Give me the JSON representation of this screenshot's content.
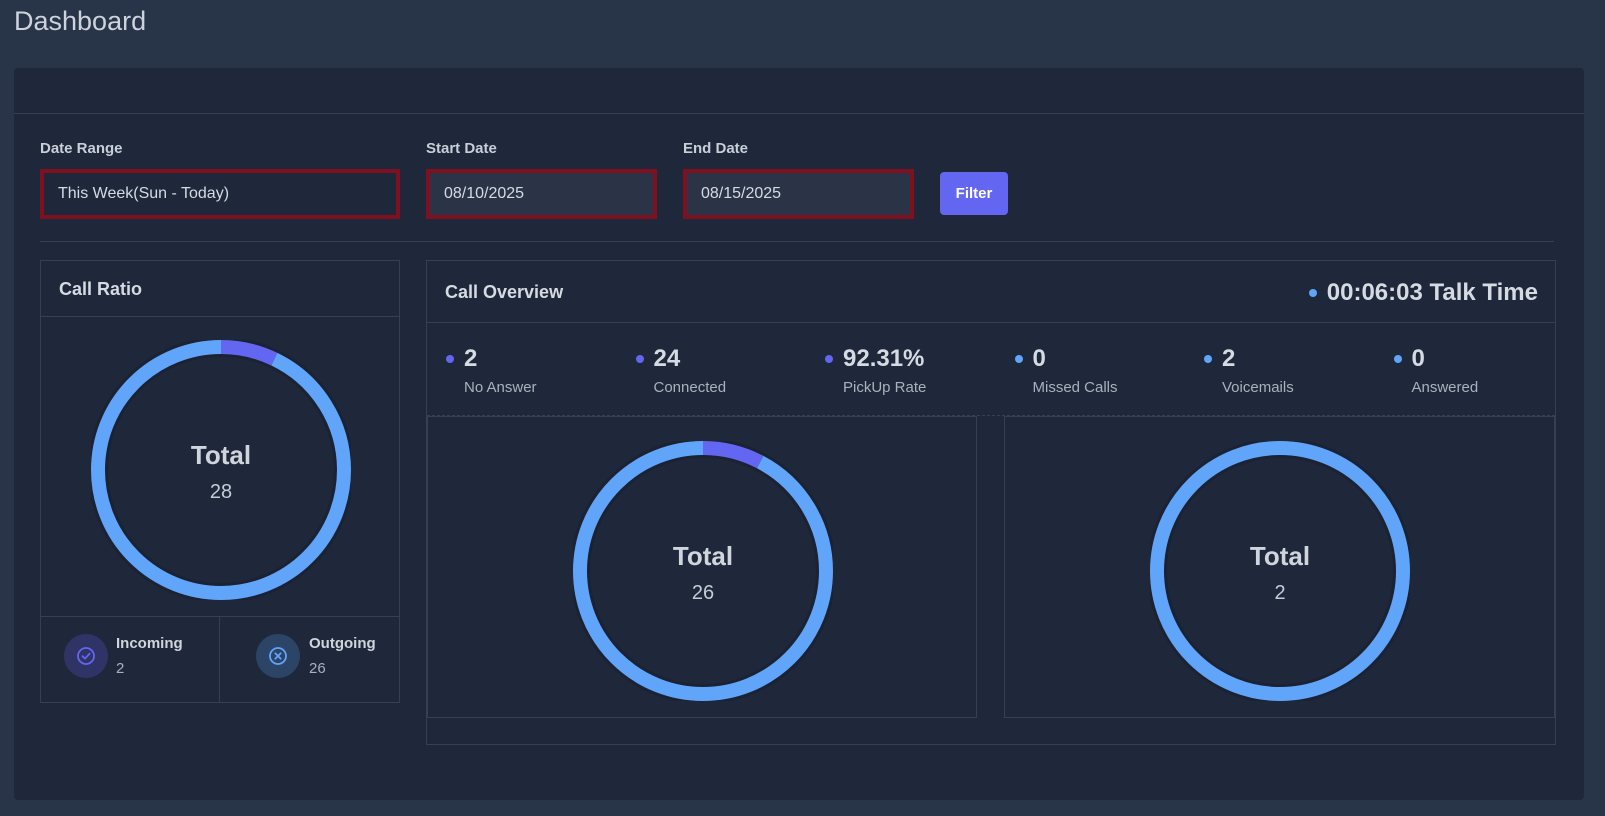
{
  "page": {
    "title": "Dashboard"
  },
  "filters": {
    "date_range": {
      "label": "Date Range",
      "value": "This Week(Sun - Today)"
    },
    "start_date": {
      "label": "Start Date",
      "value": "08/10/2025"
    },
    "end_date": {
      "label": "End Date",
      "value": "08/15/2025"
    },
    "filter_button": "Filter"
  },
  "call_ratio": {
    "title": "Call Ratio",
    "donut": {
      "total_label": "Total",
      "total_value": "28",
      "segments": [
        2,
        26
      ]
    },
    "legend": [
      {
        "name": "Incoming",
        "value": "2",
        "icon": "check-circle-icon",
        "color": "#6366f1"
      },
      {
        "name": "Outgoing",
        "value": "26",
        "icon": "x-circle-icon",
        "color": "#60a5fa"
      }
    ]
  },
  "call_overview": {
    "title": "Call Overview",
    "talk_time": "00:06:03 Talk Time",
    "stats": [
      {
        "value": "2",
        "label": "No Answer",
        "color": "#6366f1"
      },
      {
        "value": "24",
        "label": "Connected",
        "color": "#6366f1"
      },
      {
        "value": "92.31%",
        "label": "PickUp Rate",
        "color": "#6366f1"
      },
      {
        "value": "0",
        "label": "Missed Calls",
        "color": "#60a5fa"
      },
      {
        "value": "2",
        "label": "Voicemails",
        "color": "#60a5fa"
      },
      {
        "value": "0",
        "label": "Answered",
        "color": "#60a5fa"
      }
    ],
    "donut_left": {
      "total_label": "Total",
      "total_value": "26",
      "segments": [
        2,
        24
      ]
    },
    "donut_right": {
      "total_label": "Total",
      "total_value": "2",
      "segments": [
        0,
        2
      ]
    }
  },
  "colors": {
    "primary": "#6366f1",
    "secondary": "#60a5fa",
    "error_border": "#7f1020"
  }
}
